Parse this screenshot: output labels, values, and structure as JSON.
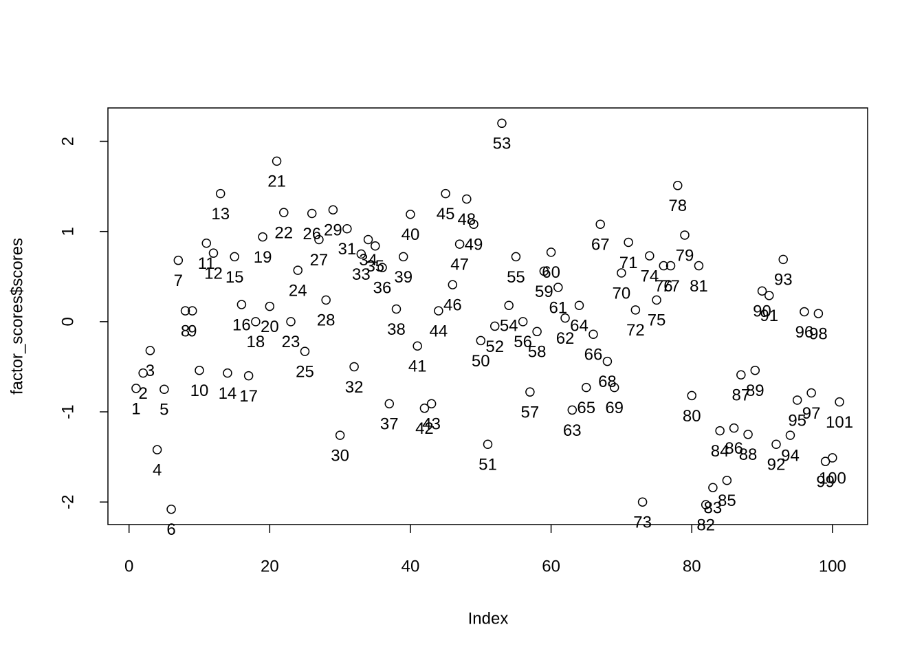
{
  "chart_data": {
    "type": "scatter",
    "xlabel": "Index",
    "ylabel": "factor_scores$scores",
    "xlim": [
      -3,
      105
    ],
    "ylim": [
      -2.25,
      2.37
    ],
    "xticks": [
      0,
      20,
      40,
      60,
      80,
      100
    ],
    "yticks": [
      -2,
      -1,
      0,
      1,
      2
    ],
    "color": "#000000",
    "x": [
      1,
      2,
      3,
      4,
      5,
      6,
      7,
      8,
      9,
      10,
      11,
      12,
      13,
      14,
      15,
      16,
      17,
      18,
      19,
      20,
      21,
      22,
      23,
      24,
      25,
      26,
      27,
      28,
      29,
      30,
      31,
      32,
      33,
      34,
      35,
      36,
      37,
      38,
      39,
      40,
      41,
      42,
      43,
      44,
      45,
      46,
      47,
      48,
      49,
      50,
      51,
      52,
      53,
      54,
      55,
      56,
      57,
      58,
      59,
      60,
      61,
      62,
      63,
      64,
      65,
      66,
      67,
      68,
      69,
      70,
      71,
      72,
      73,
      74,
      75,
      76,
      77,
      78,
      79,
      80,
      81,
      82,
      83,
      84,
      85,
      86,
      87,
      88,
      89,
      90,
      91,
      92,
      93,
      94,
      95,
      96,
      97,
      98,
      99,
      100,
      101
    ],
    "values": [
      -0.74,
      -0.57,
      -0.32,
      -1.42,
      -0.75,
      -2.08,
      0.68,
      0.12,
      0.12,
      -0.54,
      0.87,
      0.76,
      1.42,
      -0.57,
      0.72,
      0.19,
      -0.6,
      0.0,
      0.94,
      0.17,
      1.78,
      1.21,
      0.0,
      0.57,
      -0.33,
      1.2,
      0.91,
      0.24,
      1.24,
      -1.26,
      1.03,
      -0.5,
      0.75,
      0.91,
      0.84,
      0.6,
      -0.91,
      0.14,
      0.72,
      1.19,
      -0.27,
      -0.96,
      -0.91,
      0.12,
      1.42,
      0.41,
      0.86,
      1.36,
      1.08,
      -0.21,
      -1.36,
      -0.05,
      2.2,
      0.18,
      0.72,
      0.0,
      -0.78,
      -0.11,
      0.56,
      0.77,
      0.38,
      0.04,
      -0.98,
      0.18,
      -0.73,
      -0.14,
      1.08,
      -0.44,
      -0.73,
      0.54,
      0.88,
      0.13,
      -2.0,
      0.73,
      0.24,
      0.62,
      0.62,
      1.51,
      0.96,
      -0.82,
      0.62,
      -2.03,
      -1.84,
      -1.21,
      -1.76,
      -1.18,
      -0.59,
      -1.25,
      -0.54,
      0.34,
      0.29,
      -1.36,
      0.69,
      -1.26,
      -0.87,
      0.11,
      -0.79,
      0.09,
      -1.55,
      -1.51,
      -0.89
    ]
  }
}
